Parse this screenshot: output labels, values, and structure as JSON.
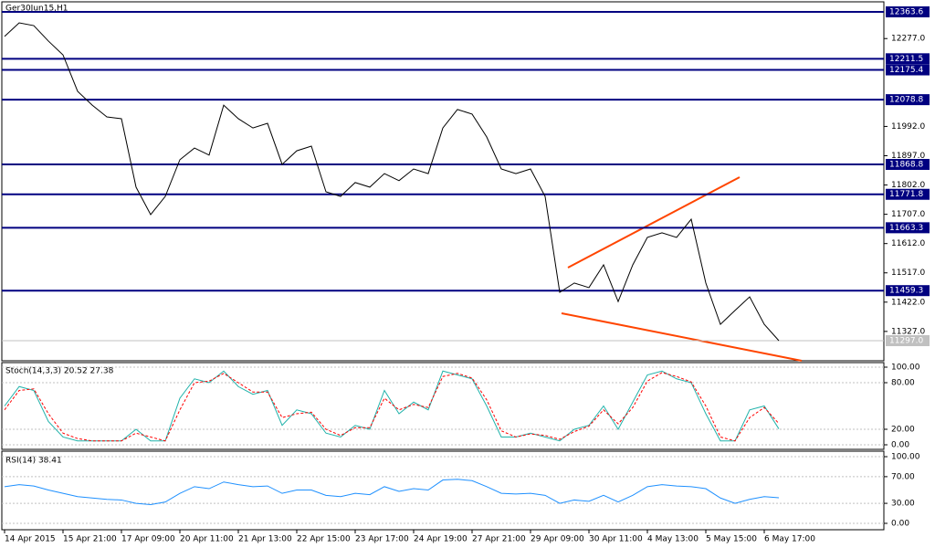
{
  "chart_data": [
    {
      "type": "line",
      "title": "Ger30Jun15,H1",
      "categories": [
        "14 Apr 2015",
        null,
        null,
        null,
        "15 Apr 21:00",
        null,
        null,
        null,
        "17 Apr 09:00",
        null,
        null,
        null,
        "20 Apr 11:00",
        null,
        null,
        null,
        "21 Apr 13:00",
        null,
        null,
        null,
        "22 Apr 15:00",
        null,
        null,
        null,
        "23 Apr 17:00",
        null,
        null,
        null,
        "24 Apr 19:00",
        null,
        null,
        null,
        "27 Apr 21:00",
        null,
        null,
        null,
        "29 Apr 09:00",
        null,
        null,
        null,
        "30 Apr 11:00",
        null,
        null,
        null,
        "4 May 13:00",
        null,
        null,
        null,
        "5 May 15:00",
        null,
        null,
        null,
        "6 May 17:00",
        null
      ],
      "series": [
        {
          "color": "#000000",
          "values": [
            12284,
            12328,
            12319,
            12269,
            12224,
            12106,
            12061,
            12023,
            12017,
            11795,
            11706,
            11765,
            11884,
            11922,
            11899,
            12061,
            12017,
            11987,
            12002,
            11869,
            11913,
            11928,
            11780,
            11765,
            11810,
            11795,
            11839,
            11816,
            11854,
            11839,
            11987,
            12047,
            12032,
            11958,
            11854,
            11839,
            11854,
            11765,
            11454,
            11484,
            11469,
            11543,
            11424,
            11543,
            11632,
            11647,
            11632,
            11691,
            11484,
            11350,
            11395,
            11439,
            11350,
            11297
          ]
        }
      ],
      "ylim": [
        11231.8,
        12396.2
      ],
      "yticks": [
        {
          "value": 12277,
          "label": "12277.0"
        },
        {
          "value": 11992,
          "label": "11992.0"
        },
        {
          "value": 11897,
          "label": "11897.0"
        },
        {
          "value": 11802,
          "label": "11802.0"
        },
        {
          "value": 11707,
          "label": "11707.0"
        },
        {
          "value": 11612,
          "label": "11612.0"
        },
        {
          "value": 11517,
          "label": "11517.0"
        },
        {
          "value": 11422,
          "label": "11422.0"
        },
        {
          "value": 11327,
          "label": "11327.0"
        }
      ],
      "levels": [
        12363.6,
        12211.5,
        12175.4,
        12078.8,
        11868.8,
        11771.8,
        11663.3,
        11459.3
      ],
      "level_color": "#000080",
      "current_price": {
        "value": 11297,
        "label": "11297.0"
      }
    },
    {
      "type": "line",
      "title": "Stoch(14,3,3) 20.52 27.38",
      "series": [
        {
          "color": "#20b2aa",
          "values": [
            50,
            75,
            70,
            30,
            10,
            5,
            5,
            5,
            5,
            20,
            5,
            5,
            60,
            85,
            80,
            95,
            75,
            65,
            70,
            25,
            45,
            40,
            15,
            10,
            25,
            20,
            70,
            40,
            55,
            45,
            95,
            90,
            85,
            50,
            10,
            10,
            15,
            10,
            5,
            20,
            25,
            50,
            20,
            55,
            90,
            95,
            85,
            80,
            40,
            5,
            5,
            45,
            50,
            20.52
          ]
        },
        {
          "color": "#ff0000",
          "values": [
            45,
            70,
            72,
            40,
            15,
            8,
            5,
            5,
            5,
            15,
            10,
            5,
            45,
            80,
            82,
            92,
            80,
            68,
            68,
            35,
            40,
            42,
            20,
            12,
            22,
            22,
            60,
            45,
            52,
            48,
            88,
            92,
            86,
            58,
            18,
            10,
            14,
            12,
            7,
            17,
            24,
            45,
            27,
            48,
            82,
            93,
            88,
            81,
            50,
            10,
            5,
            35,
            48,
            27.38
          ]
        }
      ],
      "ylim": [
        -5.9,
        105.9
      ],
      "yticks": [
        {
          "value": 100,
          "label": "100.00"
        },
        {
          "value": 80,
          "label": "80.00"
        },
        {
          "value": 20,
          "label": "20.00"
        },
        {
          "value": 0,
          "label": "0.00"
        }
      ]
    },
    {
      "type": "line",
      "title": "RSI(14) 38.41",
      "series": [
        {
          "color": "#1e90ff",
          "values": [
            55,
            58,
            56,
            50,
            45,
            40,
            38,
            36,
            35,
            30,
            28,
            32,
            45,
            55,
            52,
            62,
            58,
            55,
            56,
            45,
            50,
            50,
            42,
            40,
            45,
            43,
            55,
            48,
            52,
            50,
            65,
            66,
            64,
            55,
            45,
            44,
            45,
            42,
            30,
            35,
            33,
            42,
            32,
            42,
            55,
            58,
            56,
            55,
            52,
            38,
            30,
            36,
            40,
            38.41
          ]
        }
      ],
      "ylim": [
        -9.6,
        108.2
      ],
      "yticks": [
        {
          "value": 100,
          "label": "100.00"
        },
        {
          "value": 70,
          "label": "70.00"
        },
        {
          "value": 30,
          "label": "30.00"
        },
        {
          "value": 0,
          "label": "0.00"
        }
      ]
    }
  ]
}
